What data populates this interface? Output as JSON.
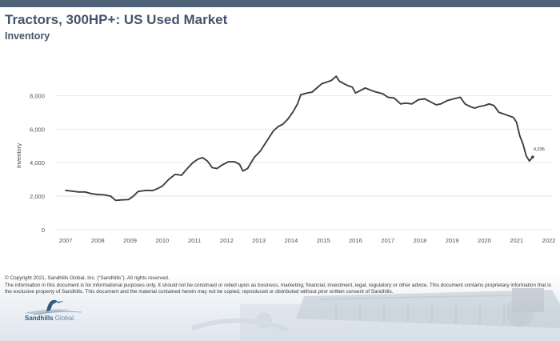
{
  "header": {
    "title": "Tractors, 300HP+:  US Used Market",
    "subtitle": "Inventory"
  },
  "colors": {
    "top_bar": "#4f6378",
    "title": "#44546a",
    "line": "#3b3f45",
    "logo": "#355a7c"
  },
  "chart_data": {
    "type": "line",
    "title": "",
    "ylabel": "Inventory",
    "xlabel": "",
    "xlim": [
      2006.7,
      2022.1
    ],
    "ylim": [
      0,
      9400
    ],
    "yticks": [
      0,
      2000,
      4000,
      6000,
      8000
    ],
    "ytick_labels": [
      "0",
      "2,000",
      "4,000",
      "6,000",
      "8,000"
    ],
    "xticks": [
      2007,
      2008,
      2009,
      2010,
      2011,
      2012,
      2013,
      2014,
      2015,
      2016,
      2017,
      2018,
      2019,
      2020,
      2021,
      2022
    ],
    "xtick_labels": [
      "2007",
      "2008",
      "2009",
      "2010",
      "2011",
      "2012",
      "2013",
      "2014",
      "2015",
      "2016",
      "2017",
      "2018",
      "2019",
      "2020",
      "2021",
      "2022"
    ],
    "grid": true,
    "legend": "none",
    "series": [
      {
        "values": [
          [
            2007.0,
            2350
          ],
          [
            2007.2,
            2300
          ],
          [
            2007.4,
            2250
          ],
          [
            2007.6,
            2250
          ],
          [
            2007.8,
            2150
          ],
          [
            2008.0,
            2100
          ],
          [
            2008.2,
            2080
          ],
          [
            2008.4,
            2000
          ],
          [
            2008.55,
            1750
          ],
          [
            2008.75,
            1780
          ],
          [
            2008.95,
            1800
          ],
          [
            2009.1,
            2000
          ],
          [
            2009.25,
            2280
          ],
          [
            2009.5,
            2350
          ],
          [
            2009.7,
            2340
          ],
          [
            2009.85,
            2450
          ],
          [
            2010.0,
            2600
          ],
          [
            2010.2,
            3000
          ],
          [
            2010.4,
            3300
          ],
          [
            2010.6,
            3250
          ],
          [
            2010.75,
            3600
          ],
          [
            2010.95,
            4000
          ],
          [
            2011.1,
            4200
          ],
          [
            2011.25,
            4300
          ],
          [
            2011.4,
            4100
          ],
          [
            2011.55,
            3700
          ],
          [
            2011.7,
            3650
          ],
          [
            2011.85,
            3850
          ],
          [
            2012.05,
            4050
          ],
          [
            2012.25,
            4050
          ],
          [
            2012.4,
            3900
          ],
          [
            2012.5,
            3500
          ],
          [
            2012.65,
            3650
          ],
          [
            2012.85,
            4300
          ],
          [
            2013.05,
            4700
          ],
          [
            2013.25,
            5300
          ],
          [
            2013.45,
            5900
          ],
          [
            2013.6,
            6150
          ],
          [
            2013.75,
            6300
          ],
          [
            2013.9,
            6600
          ],
          [
            2014.05,
            7000
          ],
          [
            2014.2,
            7500
          ],
          [
            2014.3,
            8050
          ],
          [
            2014.5,
            8150
          ],
          [
            2014.65,
            8200
          ],
          [
            2014.8,
            8450
          ],
          [
            2014.95,
            8700
          ],
          [
            2015.1,
            8800
          ],
          [
            2015.25,
            8900
          ],
          [
            2015.4,
            9150
          ],
          [
            2015.5,
            8850
          ],
          [
            2015.6,
            8750
          ],
          [
            2015.75,
            8600
          ],
          [
            2015.9,
            8500
          ],
          [
            2016.0,
            8150
          ],
          [
            2016.15,
            8300
          ],
          [
            2016.3,
            8450
          ],
          [
            2016.5,
            8300
          ],
          [
            2016.65,
            8200
          ],
          [
            2016.85,
            8100
          ],
          [
            2017.0,
            7900
          ],
          [
            2017.2,
            7850
          ],
          [
            2017.4,
            7500
          ],
          [
            2017.55,
            7550
          ],
          [
            2017.75,
            7500
          ],
          [
            2017.95,
            7750
          ],
          [
            2018.15,
            7800
          ],
          [
            2018.35,
            7600
          ],
          [
            2018.5,
            7450
          ],
          [
            2018.65,
            7500
          ],
          [
            2018.85,
            7700
          ],
          [
            2019.05,
            7800
          ],
          [
            2019.25,
            7900
          ],
          [
            2019.4,
            7500
          ],
          [
            2019.55,
            7350
          ],
          [
            2019.7,
            7250
          ],
          [
            2019.85,
            7350
          ],
          [
            2020.0,
            7400
          ],
          [
            2020.15,
            7500
          ],
          [
            2020.3,
            7400
          ],
          [
            2020.45,
            7000
          ],
          [
            2020.6,
            6900
          ],
          [
            2020.75,
            6800
          ],
          [
            2020.9,
            6700
          ],
          [
            2021.0,
            6400
          ],
          [
            2021.1,
            5600
          ],
          [
            2021.2,
            5100
          ],
          [
            2021.3,
            4400
          ],
          [
            2021.4,
            4100
          ],
          [
            2021.5,
            4336
          ]
        ]
      }
    ],
    "annotations": [
      {
        "x": 2021.5,
        "y": 4336,
        "text": "4,336"
      }
    ]
  },
  "footer": {
    "copyright": "© Copyright 2021, Sandhills Global, Inc. (“Sandhills”). All rights reserved.",
    "disclaimer": "The information in this document is for informational purposes only.  It should not be construed or relied upon as business, marketing, financial, investment, legal, regulatory or other advice. This document contains proprietary information that is the exclusive property of Sandhills. This document and the material contained herein may not be copied, reproduced or distributed without prior written consent of Sandhills.",
    "logo_name": "Sandhills",
    "logo_suffix": "Global."
  }
}
